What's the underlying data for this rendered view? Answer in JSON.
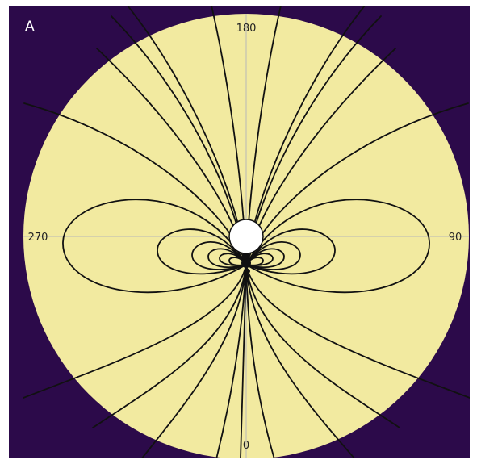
{
  "panel_label": "A",
  "compass": {
    "top": "180",
    "right": "90",
    "bottom": "0",
    "left": "270"
  },
  "colors": {
    "background": "#2c0a4a",
    "disk": "#f2eaa0",
    "lines": "#111111",
    "crosshair": "#b8b8b8",
    "source": "#ffffff"
  }
}
